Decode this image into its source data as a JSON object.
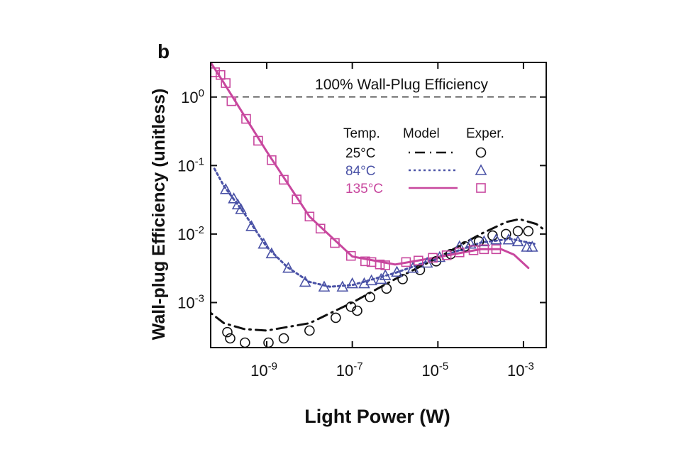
{
  "chart_data": {
    "type": "scatter",
    "panel_label": "b",
    "xlabel": "Light Power (W)",
    "ylabel": "Wall-plug Efficiency (unitless)",
    "x_scale": "log",
    "y_scale": "log",
    "xlim": [
      4.9e-11,
      0.0034
    ],
    "ylim": [
      0.00022,
      3.2
    ],
    "x_ticks": [
      {
        "base": "10",
        "exp": "-9",
        "value": 1e-09
      },
      {
        "base": "10",
        "exp": "-7",
        "value": 1e-07
      },
      {
        "base": "10",
        "exp": "-5",
        "value": 1e-05
      },
      {
        "base": "10",
        "exp": "-3",
        "value": 0.001
      }
    ],
    "y_ticks": [
      {
        "base": "10",
        "exp": "0",
        "value": 1
      },
      {
        "base": "10",
        "exp": "-1",
        "value": 0.1
      },
      {
        "base": "10",
        "exp": "-2",
        "value": 0.01
      },
      {
        "base": "10",
        "exp": "-3",
        "value": 0.001
      }
    ],
    "grid": false,
    "reference_line": {
      "label": "100% Wall-Plug Efficiency",
      "y": 1,
      "style": "dashed"
    },
    "legend": {
      "placement": "top-right",
      "headers": [
        "Temp.",
        "Model",
        "Exper."
      ]
    },
    "series": [
      {
        "name": "25°C",
        "color": "#111111",
        "model_style": "dash-dot",
        "marker": "circle",
        "model": [
          [
            5e-11,
            0.0007
          ],
          [
            1e-10,
            0.0005
          ],
          [
            3e-10,
            0.00041
          ],
          [
            1e-09,
            0.00039
          ],
          [
            1e-08,
            0.0005
          ],
          [
            1e-07,
            0.001
          ],
          [
            1e-06,
            0.0022
          ],
          [
            1e-05,
            0.0045
          ],
          [
            0.0001,
            0.01
          ],
          [
            0.0004,
            0.015
          ],
          [
            0.0008,
            0.0165
          ],
          [
            0.002,
            0.014
          ],
          [
            0.0034,
            0.011
          ]
        ],
        "exper": [
          [
            1.2e-10,
            0.00037
          ],
          [
            1.4e-10,
            0.0003
          ],
          [
            3.1e-10,
            0.00026
          ],
          [
            1.1e-09,
            0.00026
          ],
          [
            2.5e-09,
            0.0003
          ],
          [
            1e-08,
            0.00039
          ],
          [
            4.1e-08,
            0.0006
          ],
          [
            9.3e-08,
            0.00087
          ],
          [
            1.3e-07,
            0.00076
          ],
          [
            2.6e-07,
            0.0012
          ],
          [
            6.3e-07,
            0.0016
          ],
          [
            1.5e-06,
            0.0022
          ],
          [
            3.8e-06,
            0.003
          ],
          [
            9.1e-06,
            0.004
          ],
          [
            2e-05,
            0.0051
          ],
          [
            4.3e-05,
            0.0066
          ],
          [
            9.1e-05,
            0.0078
          ],
          [
            0.00019,
            0.0095
          ],
          [
            0.00039,
            0.01
          ],
          [
            0.00074,
            0.011
          ],
          [
            0.0013,
            0.011
          ]
        ]
      },
      {
        "name": "84°C",
        "color": "#4a52a6",
        "model_style": "dotted",
        "marker": "triangle",
        "model": [
          [
            6e-11,
            0.09
          ],
          [
            1e-10,
            0.05
          ],
          [
            3e-10,
            0.02
          ],
          [
            1e-09,
            0.0065
          ],
          [
            3e-09,
            0.0033
          ],
          [
            1e-08,
            0.002
          ],
          [
            3e-08,
            0.0017
          ],
          [
            1e-07,
            0.0018
          ],
          [
            1e-06,
            0.0027
          ],
          [
            1e-05,
            0.0045
          ],
          [
            0.0001,
            0.0075
          ],
          [
            0.0005,
            0.0085
          ],
          [
            0.0018,
            0.0072
          ]
        ],
        "exper": [
          [
            1.1e-10,
            0.045
          ],
          [
            1.7e-10,
            0.033
          ],
          [
            2.1e-10,
            0.027
          ],
          [
            2.5e-10,
            0.023
          ],
          [
            4.4e-10,
            0.013
          ],
          [
            8.5e-10,
            0.0072
          ],
          [
            1.3e-09,
            0.0052
          ],
          [
            3.2e-09,
            0.0032
          ],
          [
            7.9e-09,
            0.002
          ],
          [
            2.2e-08,
            0.0017
          ],
          [
            5.9e-08,
            0.0017
          ],
          [
            1e-07,
            0.0019
          ],
          [
            1.9e-07,
            0.0019
          ],
          [
            2.8e-07,
            0.0021
          ],
          [
            4.7e-07,
            0.0022
          ],
          [
            5.9e-07,
            0.0025
          ],
          [
            1.1e-06,
            0.0028
          ],
          [
            2.6e-06,
            0.0032
          ],
          [
            5.6e-06,
            0.0038
          ],
          [
            1.1e-05,
            0.0046
          ],
          [
            3.2e-05,
            0.0066
          ],
          [
            5.8e-05,
            0.0072
          ],
          [
            0.00012,
            0.0078
          ],
          [
            0.00023,
            0.0083
          ],
          [
            0.00045,
            0.0083
          ],
          [
            0.00074,
            0.0078
          ],
          [
            0.0012,
            0.0065
          ],
          [
            0.0016,
            0.0065
          ]
        ]
      },
      {
        "name": "135°C",
        "color": "#c8479e",
        "model_style": "solid",
        "marker": "square",
        "model": [
          [
            4.9e-11,
            3.2
          ],
          [
            1e-10,
            1.6
          ],
          [
            1e-09,
            0.16
          ],
          [
            1e-08,
            0.018
          ],
          [
            1e-07,
            0.0047
          ],
          [
            1e-06,
            0.0036
          ],
          [
            1e-05,
            0.0046
          ],
          [
            0.0001,
            0.006
          ],
          [
            0.0003,
            0.006
          ],
          [
            0.0006,
            0.005
          ],
          [
            0.0013,
            0.0032
          ]
        ],
        "exper": [
          [
            6.2e-11,
            2.3
          ],
          [
            8.3e-11,
            2.1
          ],
          [
            1.1e-10,
            1.6
          ],
          [
            1.5e-10,
            0.87
          ],
          [
            3.3e-10,
            0.48
          ],
          [
            6.3e-10,
            0.23
          ],
          [
            1.3e-09,
            0.12
          ],
          [
            2.5e-09,
            0.062
          ],
          [
            5e-09,
            0.032
          ],
          [
            1e-08,
            0.018
          ],
          [
            1.8e-08,
            0.012
          ],
          [
            3.9e-08,
            0.0074
          ],
          [
            9.3e-08,
            0.0048
          ],
          [
            2e-07,
            0.004
          ],
          [
            2.8e-07,
            0.0039
          ],
          [
            4.4e-07,
            0.0036
          ],
          [
            5.9e-07,
            0.0035
          ],
          [
            1.8e-06,
            0.0039
          ],
          [
            3.5e-06,
            0.0041
          ],
          [
            7.6e-06,
            0.0045
          ],
          [
            1.6e-05,
            0.0049
          ],
          [
            3.2e-05,
            0.0054
          ],
          [
            6.8e-05,
            0.0058
          ],
          [
            0.00012,
            0.006
          ],
          [
            0.00023,
            0.006
          ]
        ]
      }
    ]
  }
}
